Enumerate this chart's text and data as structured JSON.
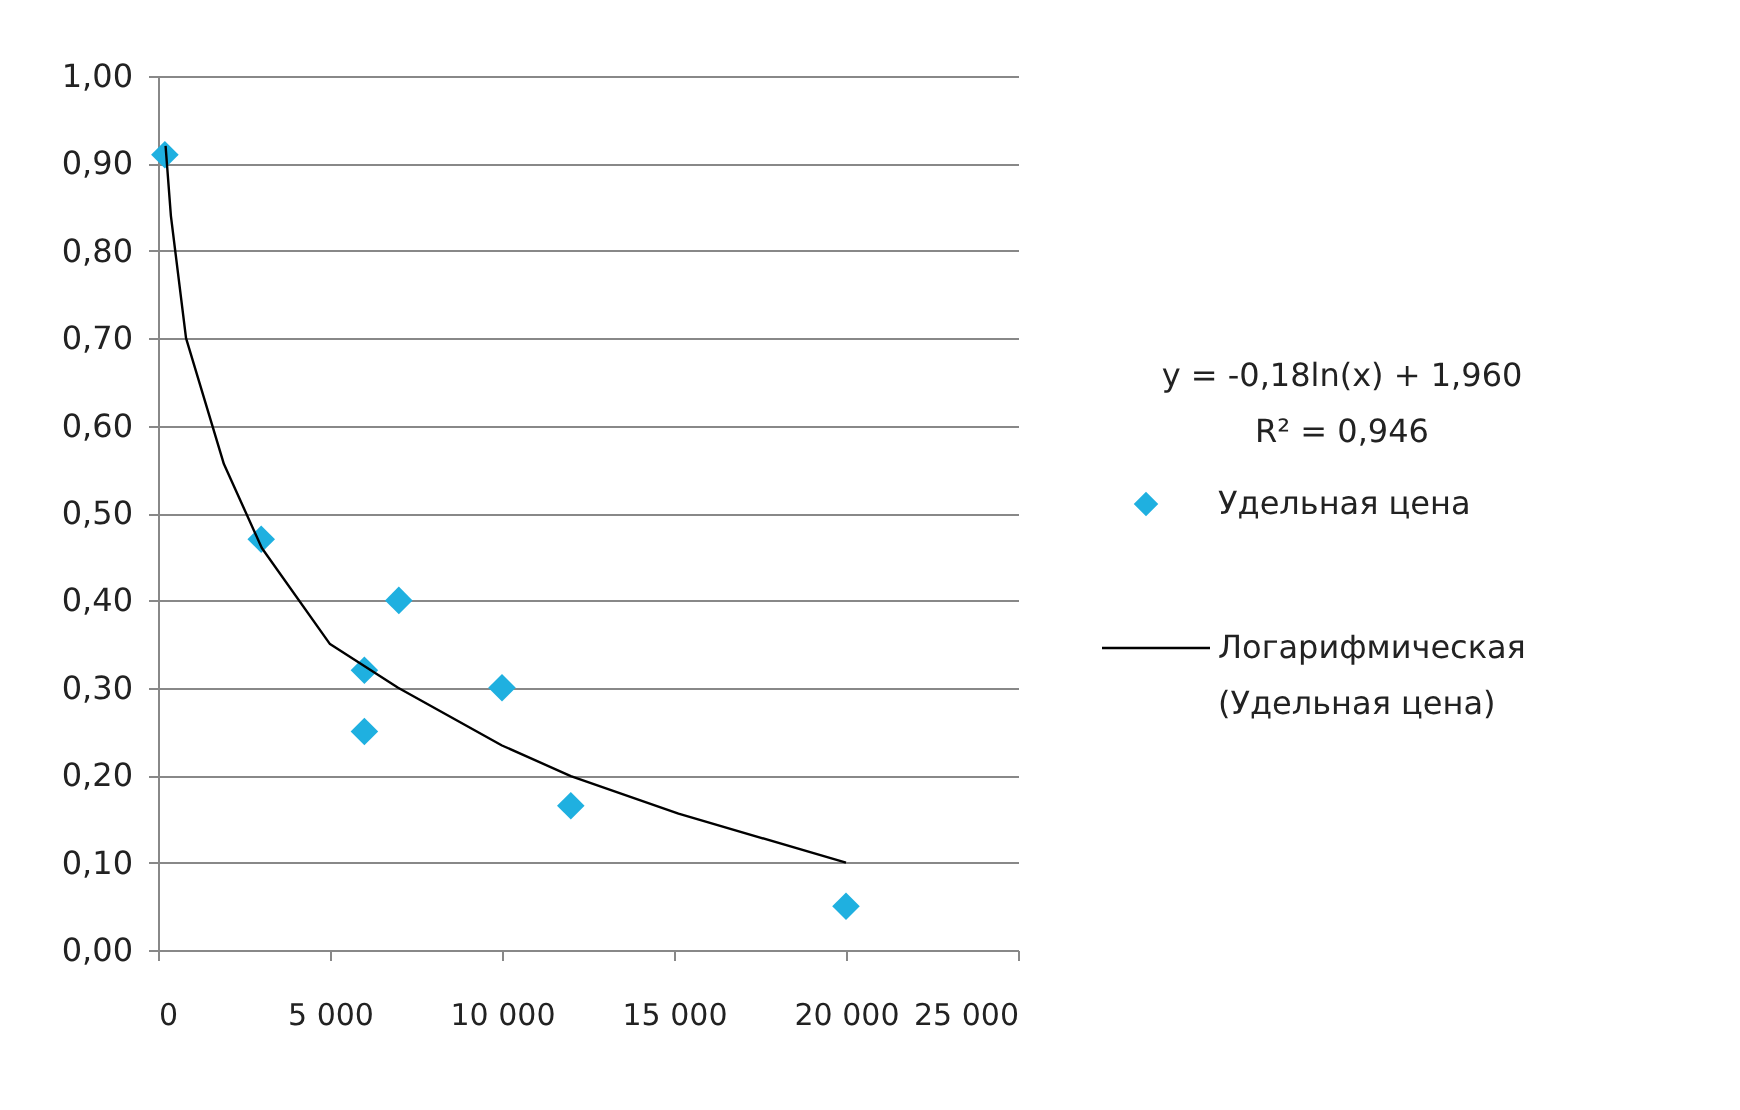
{
  "chart_data": {
    "type": "scatter",
    "legend": "right",
    "grid": "y",
    "annotations": [
      "y = -0,18ln(x) + 1,960",
      "R² = 0,946"
    ],
    "xlim": [
      0,
      25000
    ],
    "xticks": [
      {
        "value": 0,
        "label": "0"
      },
      {
        "value": 5000,
        "label": "5 000"
      },
      {
        "value": 10000,
        "label": "10 000"
      },
      {
        "value": 15000,
        "label": "15 000"
      },
      {
        "value": 20000,
        "label": "20 000"
      },
      {
        "value": 25000,
        "label": "25 000"
      }
    ],
    "ylim": [
      0,
      1
    ],
    "yticks": [
      {
        "value": 0,
        "label": "0,00"
      },
      {
        "value": 0.1,
        "label": "0,10"
      },
      {
        "value": 0.2,
        "label": "0,20"
      },
      {
        "value": 0.3,
        "label": "0,30"
      },
      {
        "value": 0.4,
        "label": "0,40"
      },
      {
        "value": 0.5,
        "label": "0,50"
      },
      {
        "value": 0.6,
        "label": "0,60"
      },
      {
        "value": 0.7,
        "label": "0,70"
      },
      {
        "value": 0.8,
        "label": "0,80"
      },
      {
        "value": 0.9,
        "label": "0,90"
      },
      {
        "value": 1,
        "label": "1,00"
      }
    ],
    "series": [
      {
        "name": "Удельная цена",
        "marker": "diamond",
        "color": "#1fb0e0",
        "x": [
          200,
          3000,
          6000,
          6000,
          7000,
          10000,
          12000,
          20000
        ],
        "values": [
          0.91,
          0.47,
          0.32,
          0.25,
          0.4,
          0.3,
          0.165,
          0.05
        ]
      },
      {
        "name": "Логарифмическая (Удельная цена)",
        "type": "line",
        "marker": "none",
        "color": "#000000",
        "x": [
          220,
          375,
          815,
          1916,
          3018,
          5000,
          6980,
          10000,
          12000,
          15130,
          20000
        ],
        "values": [
          0.92,
          0.84,
          0.7,
          0.556,
          0.46,
          0.35,
          0.3,
          0.234,
          0.199,
          0.156,
          0.1
        ]
      }
    ]
  }
}
